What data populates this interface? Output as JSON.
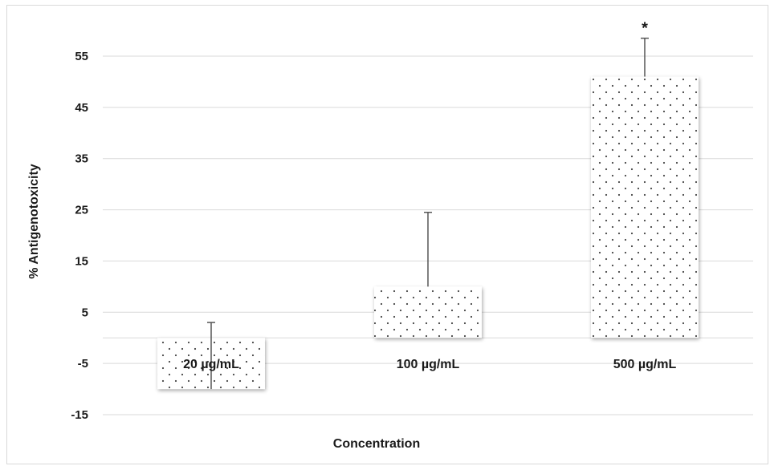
{
  "chart_data": {
    "type": "bar",
    "title": "",
    "xlabel": "Concentration",
    "ylabel": "% Antigenotoxicity",
    "ylim": [
      -15,
      55
    ],
    "yticks": [
      -15,
      -5,
      5,
      15,
      25,
      35,
      45,
      55
    ],
    "grid": true,
    "legend": "none",
    "categories": [
      "20 µg/mL",
      "100 µg/mL",
      "500 µg/mL"
    ],
    "values": [
      -10,
      10,
      51
    ],
    "error_upper": [
      3,
      24.5,
      58.5
    ],
    "significance": [
      "",
      "",
      "*"
    ],
    "colors": {
      "bar_fill": "#ffffff",
      "bar_dots": "#444444",
      "gridline": "#d9d9d9",
      "error_bar": "#555555",
      "text": "#1a1a1a"
    }
  }
}
